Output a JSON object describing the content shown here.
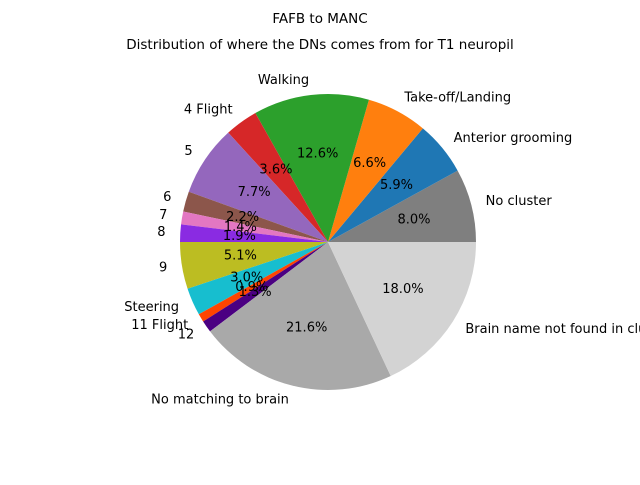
{
  "chart_data": {
    "type": "pie",
    "title": "FAFB to MANC",
    "subtitle": "Distribution of where the DNs comes from for T1 neuropil",
    "slices": [
      {
        "label": "No cluster",
        "value": 8.0,
        "pct_label": "8.0%",
        "color": "#7f7f7f"
      },
      {
        "label": "Anterior grooming",
        "value": 5.9,
        "pct_label": "5.9%",
        "color": "#1f77b4"
      },
      {
        "label": "Take-off/Landing",
        "value": 6.6,
        "pct_label": "6.6%",
        "color": "#ff7f0e"
      },
      {
        "label": "Walking",
        "value": 12.6,
        "pct_label": "12.6%",
        "color": "#2ca02c"
      },
      {
        "label": "4 Flight",
        "value": 3.6,
        "pct_label": "3.6%",
        "color": "#d62728"
      },
      {
        "label": "5",
        "value": 7.7,
        "pct_label": "7.7%",
        "color": "#9467bd"
      },
      {
        "label": "6",
        "value": 2.2,
        "pct_label": "2.2%",
        "color": "#8c564b"
      },
      {
        "label": "7",
        "value": 1.4,
        "pct_label": "1.4%",
        "color": "#e377c2"
      },
      {
        "label": "8",
        "value": 1.9,
        "pct_label": "1.9%",
        "color": "#8a2be2"
      },
      {
        "label": "9",
        "value": 5.1,
        "pct_label": "5.1%",
        "color": "#bcbd22"
      },
      {
        "label": "Steering",
        "value": 3.0,
        "pct_label": "3.0%",
        "color": "#17becf"
      },
      {
        "label": "11 Flight",
        "value": 0.9,
        "pct_label": "0.9%",
        "color": "#ff4500"
      },
      {
        "label": "12",
        "value": 1.3,
        "pct_label": "1.3%",
        "color": "#4b0082"
      },
      {
        "label": "No matching to brain",
        "value": 21.6,
        "pct_label": "21.6%",
        "color": "#a9a9a9"
      },
      {
        "label": "Brain name not found in clusters",
        "value": 18.0,
        "pct_label": "18.0%",
        "color": "#d3d3d3"
      }
    ]
  }
}
